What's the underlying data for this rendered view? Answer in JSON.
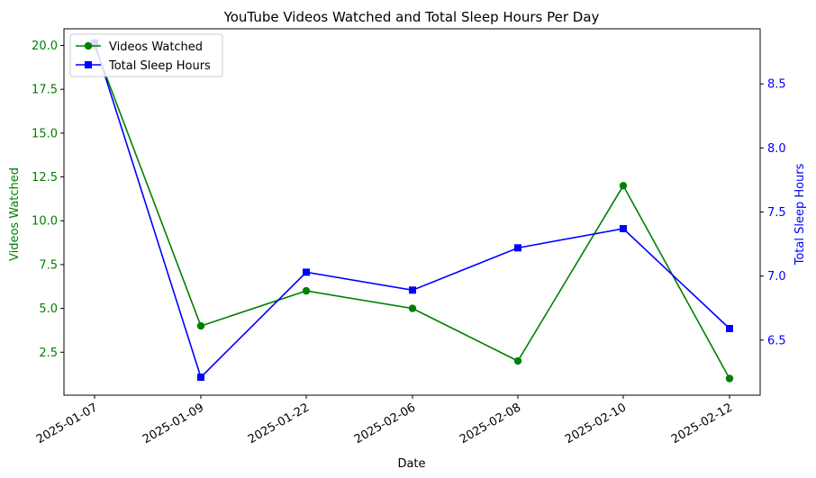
{
  "chart_data": {
    "type": "line",
    "title": "YouTube Videos Watched and Total Sleep Hours Per Day",
    "xlabel": "Date",
    "categories": [
      "2025-01-07",
      "2025-01-09",
      "2025-01-22",
      "2025-02-06",
      "2025-02-08",
      "2025-02-10",
      "2025-02-12"
    ],
    "y_left": {
      "label": "Videos Watched",
      "ticks": [
        "2.5",
        "5.0",
        "7.5",
        "10.0",
        "12.5",
        "15.0",
        "17.5",
        "20.0"
      ],
      "ylim": [
        0.05,
        20.95
      ],
      "color": "#008000"
    },
    "y_right": {
      "label": "Total Sleep Hours",
      "ticks": [
        "6.5",
        "7.0",
        "7.5",
        "8.0",
        "8.5"
      ],
      "ylim": [
        6.07,
        8.93
      ],
      "color": "#0000ff"
    },
    "series": [
      {
        "name": "Videos Watched",
        "axis": "left",
        "color": "#008000",
        "marker": "circle",
        "values": [
          20,
          4,
          6,
          5,
          2,
          12,
          1
        ]
      },
      {
        "name": "Total Sleep Hours",
        "axis": "right",
        "color": "#0000ff",
        "marker": "square",
        "values": [
          8.82,
          6.21,
          7.03,
          6.89,
          7.22,
          7.37,
          6.59
        ]
      }
    ],
    "grid": false,
    "legend": "top-left"
  }
}
